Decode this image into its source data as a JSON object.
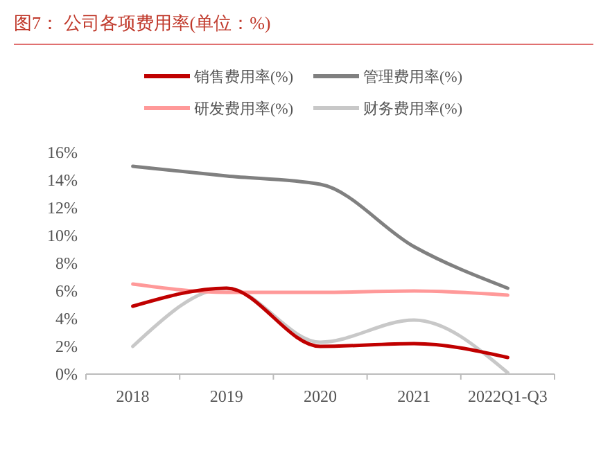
{
  "chart_data": {
    "type": "line",
    "title": "图7：  公司各项费用率(单位：%)",
    "categories": [
      "2018",
      "2019",
      "2020",
      "2021",
      "2022Q1-Q3"
    ],
    "series": [
      {
        "name": "销售费用率(%)",
        "color": "#c00000",
        "values": [
          4.9,
          6.2,
          2.0,
          2.2,
          1.2
        ]
      },
      {
        "name": "管理费用率(%)",
        "color": "#808080",
        "values": [
          15.0,
          14.3,
          13.7,
          9.2,
          6.2
        ]
      },
      {
        "name": "研发费用率(%)",
        "color": "#ff9999",
        "values": [
          6.5,
          5.9,
          5.9,
          6.0,
          5.7
        ]
      },
      {
        "name": "财务费用率(%)",
        "color": "#c8c8c8",
        "values": [
          2.0,
          6.2,
          2.3,
          3.9,
          0.1
        ]
      }
    ],
    "ylim": [
      0,
      16
    ],
    "yticks": [
      {
        "value": 0,
        "label": "0%"
      },
      {
        "value": 2,
        "label": "2%"
      },
      {
        "value": 4,
        "label": "4%"
      },
      {
        "value": 6,
        "label": "6%"
      },
      {
        "value": 8,
        "label": "8%"
      },
      {
        "value": 10,
        "label": "10%"
      },
      {
        "value": 12,
        "label": "12%"
      },
      {
        "value": 14,
        "label": "14%"
      },
      {
        "value": 16,
        "label": "16%"
      }
    ],
    "grid": false,
    "legend": "top",
    "marker": "none",
    "line_style": "solid"
  }
}
